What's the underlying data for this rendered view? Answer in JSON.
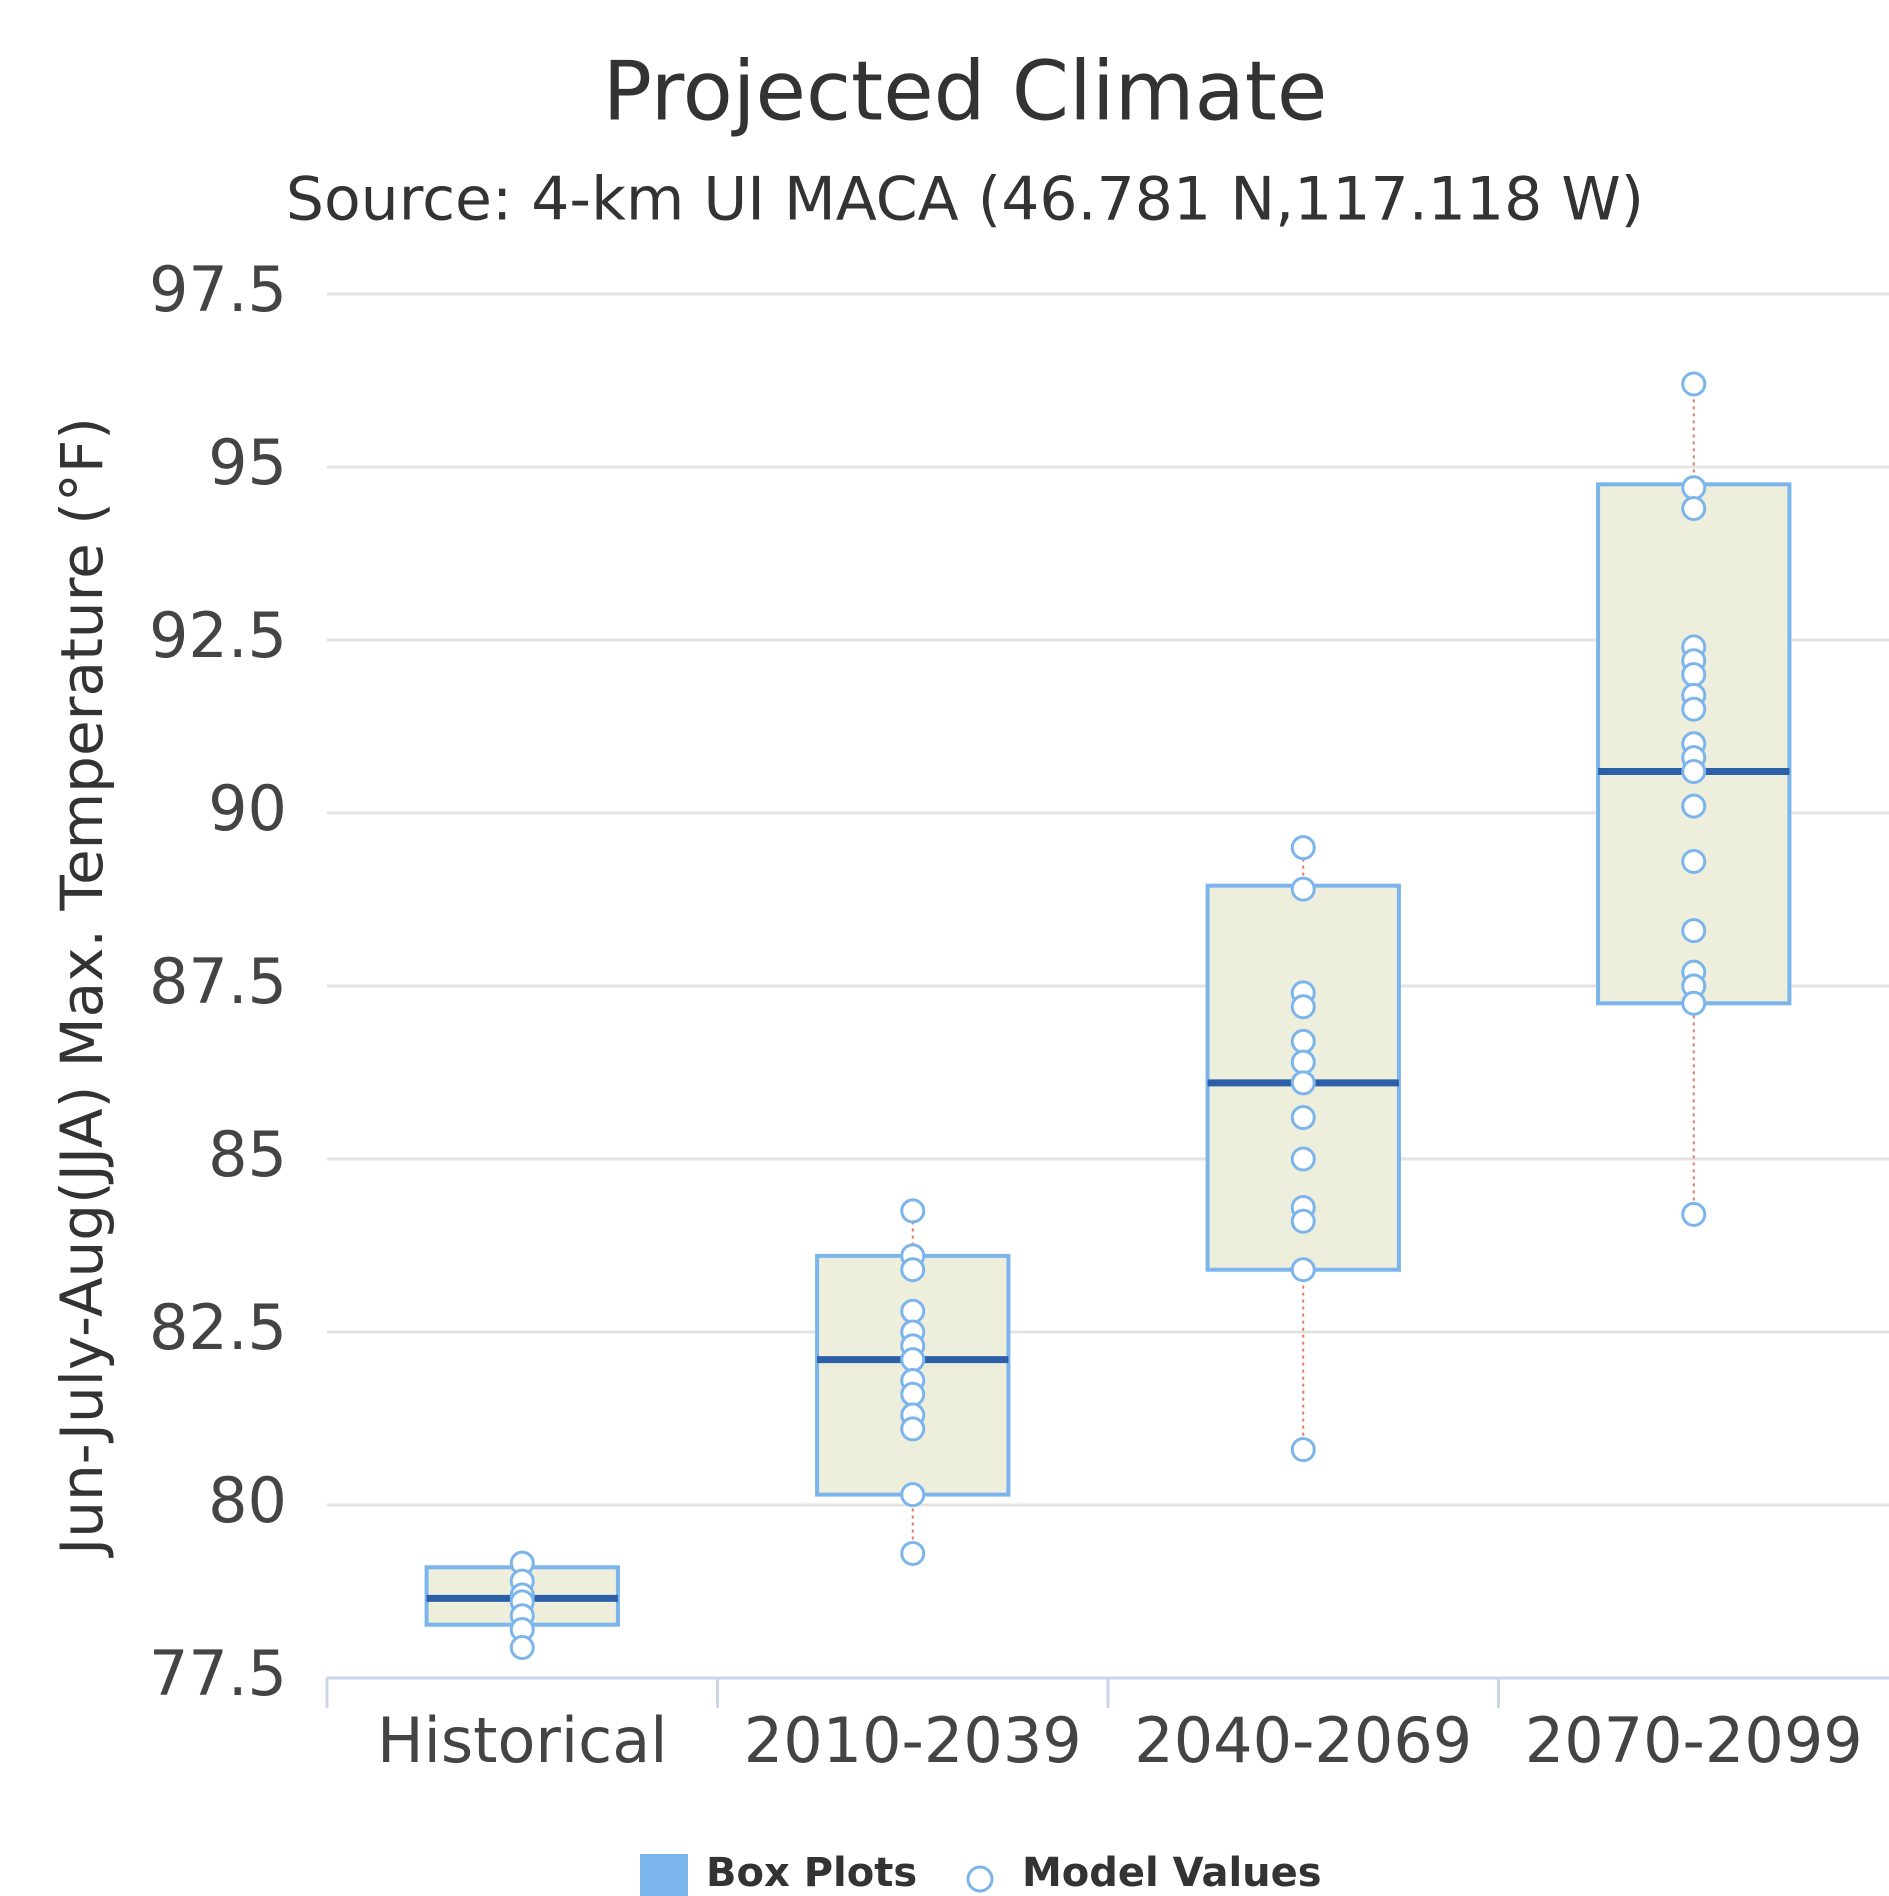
{
  "chart_data": {
    "type": "boxplot",
    "title": "Projected Climate",
    "subtitle": "Source: 4-km UI MACA (46.781 N,117.118 W)",
    "y_label": "Jun-July-Aug(JJA) Max. Temperature (°F)",
    "categories": [
      "Historical",
      "2010-2039",
      "2040-2069",
      "2070-2099"
    ],
    "ylim": [
      77.5,
      97.5
    ],
    "yticks": [
      77.5,
      80,
      82.5,
      85,
      87.5,
      90,
      92.5,
      95,
      97.5
    ],
    "grid": true,
    "legend": "bottom",
    "series": [
      {
        "name": "Box Plots",
        "color": "#7cb5ec",
        "fill": "#eeeedd",
        "median_color": "#2b5fa8",
        "whisker_color": "#e07a6a",
        "boxes": [
          {
            "low": 77.94,
            "q1": 78.27,
            "median": 78.65,
            "q3": 79.1,
            "high": 79.16
          },
          {
            "low": 79.3,
            "q1": 80.15,
            "median": 82.1,
            "q3": 83.6,
            "high": 84.25
          },
          {
            "low": 80.8,
            "q1": 83.4,
            "median": 86.1,
            "q3": 88.95,
            "high": 89.5
          },
          {
            "low": 84.2,
            "q1": 87.25,
            "median": 90.6,
            "q3": 94.75,
            "high": 96.2
          }
        ]
      },
      {
        "name": "Model Values",
        "color": "#7cb5ec",
        "values": [
          [
            79.16,
            78.9,
            78.7,
            78.6,
            78.4,
            78.2,
            77.94
          ],
          [
            84.25,
            83.6,
            83.4,
            82.8,
            82.5,
            82.3,
            82.1,
            81.8,
            81.6,
            81.3,
            81.1,
            80.15,
            79.3
          ],
          [
            89.5,
            88.9,
            87.4,
            87.2,
            86.7,
            86.4,
            86.1,
            85.6,
            85.0,
            84.3,
            84.1,
            83.4,
            80.8
          ],
          [
            96.2,
            94.7,
            94.4,
            92.4,
            92.2,
            92.0,
            91.7,
            91.5,
            91.0,
            90.8,
            90.6,
            90.1,
            89.3,
            88.3,
            87.7,
            87.5,
            87.25,
            84.2
          ]
        ]
      }
    ]
  }
}
